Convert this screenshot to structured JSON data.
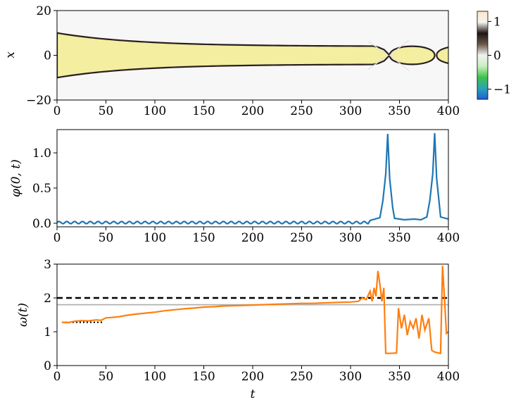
{
  "chart_data": [
    {
      "type": "heatmap",
      "ylabel": "x",
      "xlim": [
        0,
        400
      ],
      "ylim": [
        -20,
        20
      ],
      "xticks": [
        "0",
        "50",
        "100",
        "150",
        "200",
        "250",
        "300",
        "350",
        "400"
      ],
      "yticks": [
        "20",
        "0",
        "−20"
      ],
      "colorbar": {
        "range": [
          -1.3,
          1.3
        ],
        "ticks": [
          "1",
          "0",
          "−1"
        ],
        "colors": [
          "#1f5fd6",
          "#29a3b8",
          "#3fc24a",
          "#c9eec0",
          "#f2f2f2",
          "#6b5a48",
          "#1e1414",
          "#f5f3ee",
          "#fbe6c8"
        ]
      },
      "fields": [
        {
          "shape": "tapering band",
          "t_start": 0,
          "t_end": 340,
          "half_width_start": 10,
          "half_width_mid": 5,
          "half_width_end": 4
        },
        {
          "shape": "bubble",
          "t_center": 363,
          "half_length": 23,
          "half_width": 4
        },
        {
          "shape": "bubble",
          "t_center": 412,
          "half_length": 24,
          "half_width": 4
        }
      ],
      "fill_color": "#f3eea0",
      "edge_color": "#2a1f1f"
    },
    {
      "type": "line",
      "ylabel": "φ(0, t)",
      "xlim": [
        0,
        400
      ],
      "ylim": [
        -0.05,
        1.33
      ],
      "xticks": [
        "0",
        "50",
        "100",
        "150",
        "200",
        "250",
        "300",
        "350",
        "400"
      ],
      "yticks": [
        "0.0",
        "0.5",
        "1.0"
      ],
      "series": [
        {
          "color": "#1f77b4",
          "baseline": 0.01,
          "oscillation": 0.015,
          "period": 8,
          "peaks": [
            {
              "t": 338,
              "value": 1.27
            },
            {
              "t": 386,
              "value": 1.28
            }
          ],
          "tail_points": [
            [
              320,
              0.04
            ],
            [
              330,
              0.08
            ],
            [
              345,
              0.07
            ],
            [
              355,
              0.05
            ],
            [
              365,
              0.06
            ],
            [
              372,
              0.05
            ],
            [
              378,
              0.09
            ],
            [
              392,
              0.09
            ],
            [
              400,
              0.06
            ]
          ]
        }
      ]
    },
    {
      "type": "line",
      "xlabel": "t",
      "ylabel": "ω(t)",
      "xlim": [
        0,
        400
      ],
      "ylim": [
        0,
        3
      ],
      "xticks": [
        "0",
        "50",
        "100",
        "150",
        "200",
        "250",
        "300",
        "350",
        "400"
      ],
      "yticks": [
        "0",
        "1",
        "2",
        "3"
      ],
      "reference_lines": [
        {
          "style": "dashed",
          "color": "#000000",
          "y": 2.0,
          "x": [
            0,
            400
          ]
        },
        {
          "style": "solid",
          "color": "#b0b0b0",
          "y": 1.8,
          "x": [
            0,
            400
          ]
        },
        {
          "style": "dotted",
          "color": "#000000",
          "y": 1.28,
          "x": [
            5,
            48
          ]
        }
      ],
      "series": [
        {
          "color": "#ff7f0e",
          "points": [
            [
              5,
              1.28
            ],
            [
              12,
              1.27
            ],
            [
              18,
              1.31
            ],
            [
              25,
              1.33
            ],
            [
              32,
              1.32
            ],
            [
              40,
              1.35
            ],
            [
              45,
              1.34
            ],
            [
              50,
              1.41
            ],
            [
              55,
              1.42
            ],
            [
              62,
              1.44
            ],
            [
              70,
              1.48
            ],
            [
              80,
              1.52
            ],
            [
              90,
              1.55
            ],
            [
              100,
              1.58
            ],
            [
              110,
              1.62
            ],
            [
              120,
              1.65
            ],
            [
              130,
              1.68
            ],
            [
              140,
              1.7
            ],
            [
              150,
              1.73
            ],
            [
              160,
              1.74
            ],
            [
              170,
              1.76
            ],
            [
              180,
              1.77
            ],
            [
              190,
              1.78
            ],
            [
              200,
              1.79
            ],
            [
              210,
              1.8
            ],
            [
              220,
              1.81
            ],
            [
              230,
              1.82
            ],
            [
              240,
              1.83
            ],
            [
              250,
              1.84
            ],
            [
              260,
              1.84
            ],
            [
              270,
              1.85
            ],
            [
              280,
              1.86
            ],
            [
              290,
              1.87
            ],
            [
              300,
              1.88
            ],
            [
              308,
              1.9
            ],
            [
              312,
              2.0
            ],
            [
              316,
              1.95
            ],
            [
              320,
              2.2
            ],
            [
              322,
              1.9
            ],
            [
              324,
              2.3
            ],
            [
              326,
              2.05
            ],
            [
              328,
              2.8
            ],
            [
              330,
              2.4
            ],
            [
              332,
              1.9
            ],
            [
              334,
              2.3
            ],
            [
              336,
              0.36
            ],
            [
              340,
              0.36
            ],
            [
              347,
              0.37
            ],
            [
              349,
              1.7
            ],
            [
              352,
              1.1
            ],
            [
              355,
              1.5
            ],
            [
              358,
              0.9
            ],
            [
              361,
              1.3
            ],
            [
              364,
              1.1
            ],
            [
              367,
              1.4
            ],
            [
              370,
              0.8
            ],
            [
              373,
              1.5
            ],
            [
              376,
              1.05
            ],
            [
              380,
              1.4
            ],
            [
              383,
              0.45
            ],
            [
              386,
              0.4
            ],
            [
              392,
              0.36
            ],
            [
              394,
              2.95
            ],
            [
              396,
              2.0
            ],
            [
              398,
              0.95
            ],
            [
              400,
              1.0
            ]
          ]
        }
      ]
    }
  ]
}
